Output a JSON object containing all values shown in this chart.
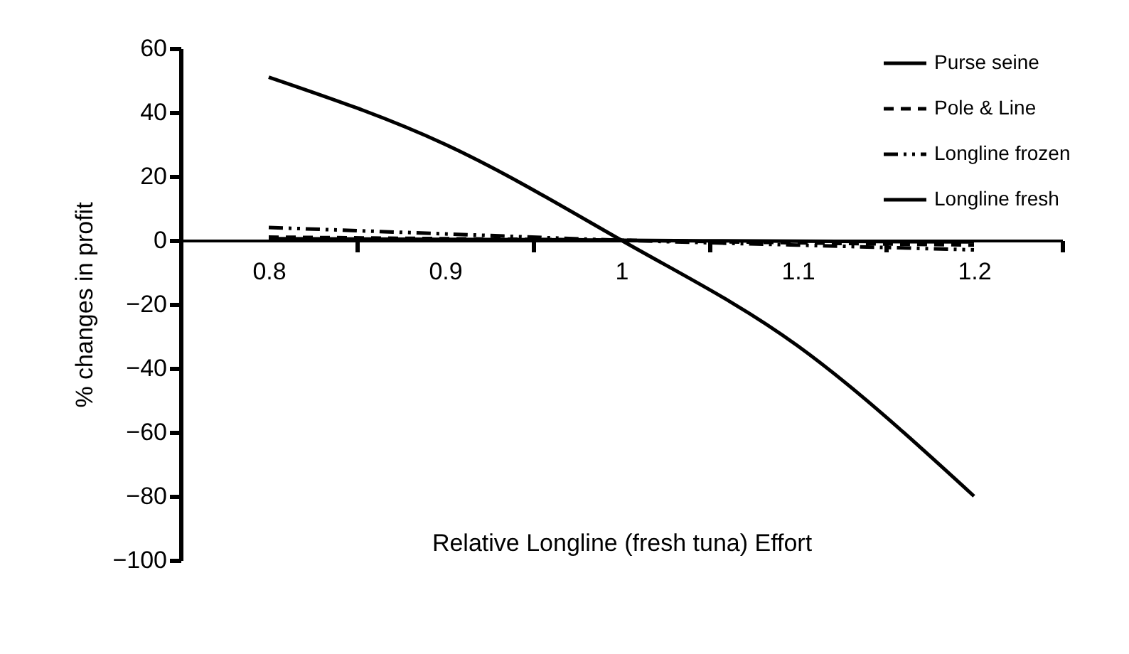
{
  "chart_data": {
    "type": "line",
    "xlabel": "Relative Longline (fresh tuna) Effort",
    "ylabel": "% changes in profit",
    "categories": [
      "0.8",
      "0.9",
      "1",
      "1.1",
      "1.2"
    ],
    "series": [
      {
        "name": "Purse seine",
        "color": "#000000",
        "line_style": "solid",
        "values": [
          0.5,
          0.3,
          0,
          -0.3,
          -0.5
        ]
      },
      {
        "name": "Pole & Line",
        "color": "#000000",
        "line_style": "dashed",
        "values": [
          1,
          0.5,
          0,
          -0.8,
          -1.5
        ]
      },
      {
        "name": "Longline frozen",
        "color": "#000000",
        "line_style": "dotted",
        "values": [
          4,
          2,
          0,
          -1.5,
          -3
        ]
      },
      {
        "name": "Longline fresh",
        "color": "#000000",
        "line_style": "solid",
        "values": [
          51,
          30,
          0,
          -33,
          -80
        ]
      }
    ],
    "ylim": [
      -100,
      60
    ],
    "yticks": [
      -100,
      -80,
      -60,
      -40,
      -20,
      0,
      20,
      40,
      60
    ],
    "grid": false,
    "legend": "top right"
  }
}
